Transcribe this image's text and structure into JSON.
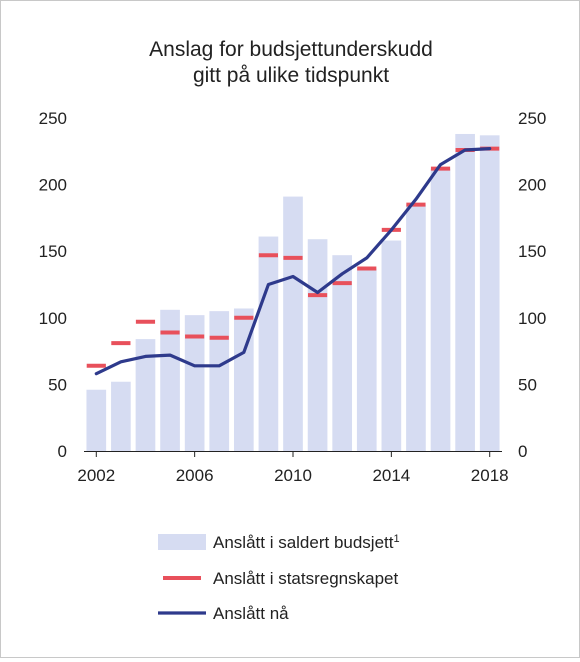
{
  "chart_data": {
    "type": "bar",
    "title_line1": "Anslag for budsjettunderskudd",
    "title_line2": "gitt på ulike tidspunkt",
    "categories": [
      2002,
      2003,
      2004,
      2005,
      2006,
      2007,
      2008,
      2009,
      2010,
      2011,
      2012,
      2013,
      2014,
      2015,
      2016,
      2017,
      2018
    ],
    "x_ticks": [
      "2002",
      "2006",
      "2010",
      "2014",
      "2018"
    ],
    "y_ticks": [
      "0",
      "50",
      "100",
      "150",
      "200",
      "250"
    ],
    "ylim": [
      0,
      250
    ],
    "series": [
      {
        "name": "Anslått i saldert budsjett",
        "superscript": "1",
        "kind": "bar",
        "color": "#d6dcf2",
        "values": [
          46,
          52,
          84,
          106,
          102,
          105,
          107,
          161,
          191,
          159,
          147,
          137,
          158,
          185,
          212,
          238,
          237
        ]
      },
      {
        "name": "Anslått i statsregnskapet",
        "kind": "dash",
        "color": "#e8505b",
        "values": [
          64,
          81,
          97,
          89,
          86,
          85,
          100,
          147,
          145,
          117,
          126,
          137,
          166,
          185,
          212,
          226,
          227
        ]
      },
      {
        "name": "Anslått nå",
        "kind": "line",
        "color": "#2e3a8c",
        "values": [
          58,
          67,
          71,
          72,
          64,
          64,
          74,
          125,
          131,
          119,
          133,
          145,
          166,
          189,
          215,
          226,
          227
        ]
      }
    ]
  }
}
